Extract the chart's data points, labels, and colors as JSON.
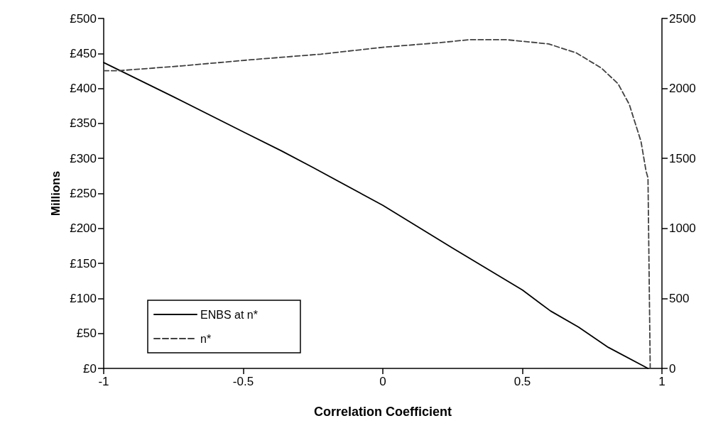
{
  "chart_data": {
    "type": "line",
    "xlabel": "Correlation Coefficient",
    "ylabel": "Millions",
    "x": [
      -1,
      -0.75,
      -0.5,
      -0.364,
      -0.25,
      0,
      0.25,
      0.5,
      0.601,
      0.701,
      0.808,
      0.95
    ],
    "series": [
      {
        "name": "ENBS at n*",
        "color": "#000000",
        "line_style": "solid",
        "values": [
          437,
          388,
          338,
          311,
          287,
          233,
          172,
          112,
          82,
          59,
          30,
          0
        ]
      },
      {
        "name": "n*",
        "color": "#404040",
        "line_style": "dashed",
        "axis": "y2",
        "x": [
          -1,
          -0.945,
          -0.721,
          -0.472,
          -0.222,
          0,
          0.209,
          0.309,
          0.444,
          0.594,
          0.693,
          0.783,
          0.843,
          0.883,
          0.925,
          0.943,
          0.95,
          0.958
        ],
        "values": [
          2127,
          2127,
          2161,
          2205,
          2245,
          2294,
          2328,
          2348,
          2348,
          2318,
          2254,
          2146,
          2033,
          1886,
          1621,
          1410,
          1360,
          0
        ]
      }
    ],
    "xlim": [
      -1,
      1
    ],
    "xticks": [
      -1,
      -0.5,
      0,
      0.5,
      1
    ],
    "ylim": [
      0,
      500
    ],
    "yticks": [
      {
        "value": 0,
        "label": "£0"
      },
      {
        "value": 50,
        "label": "£50"
      },
      {
        "value": 100,
        "label": "£100"
      },
      {
        "value": 150,
        "label": "£150"
      },
      {
        "value": 200,
        "label": "£200"
      },
      {
        "value": 250,
        "label": "£250"
      },
      {
        "value": 300,
        "label": "£300"
      },
      {
        "value": 350,
        "label": "£350"
      },
      {
        "value": 400,
        "label": "£400"
      },
      {
        "value": 450,
        "label": "£450"
      },
      {
        "value": 500,
        "label": "£500"
      }
    ],
    "y2lim": [
      0,
      2500
    ],
    "y2ticks": [
      0,
      500,
      1000,
      1500,
      2000,
      2500
    ],
    "grid": false,
    "legend": "bottom left",
    "marker": "none"
  }
}
